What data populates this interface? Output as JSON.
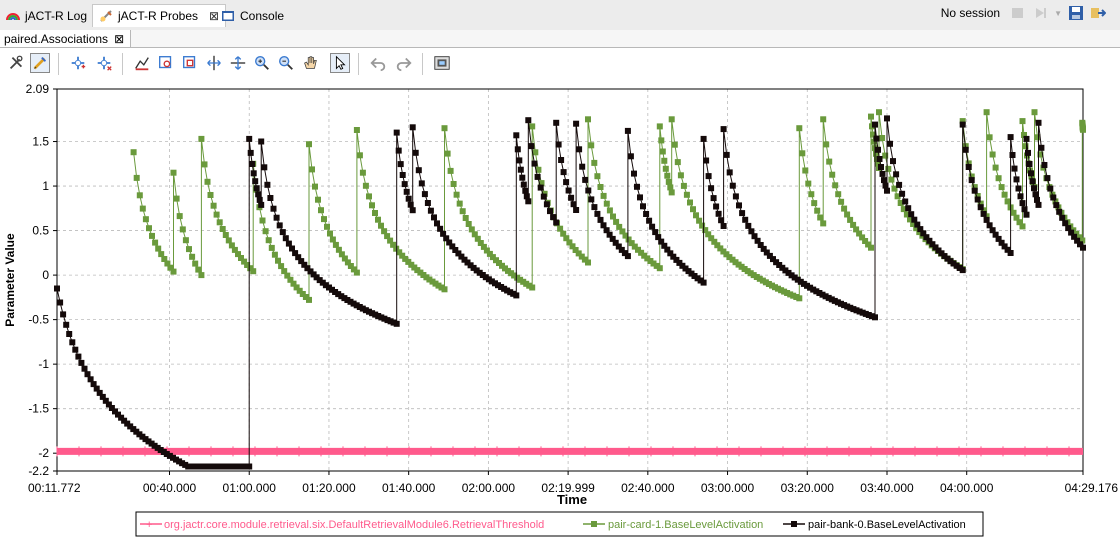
{
  "tabs": [
    {
      "label": "jACT-R Log",
      "icon": "rainbow-log-icon"
    },
    {
      "label": "jACT-R Probes",
      "icon": "probe-icon"
    },
    {
      "label": "Console",
      "icon": "console-icon"
    }
  ],
  "session": {
    "label": "No session"
  },
  "subtab": {
    "label": "paired.Associations"
  },
  "toolbar_icons": [
    "tools-icon",
    "pen-icon",
    "add-marker-icon",
    "remove-marker-icon",
    "zoom-fit-icon",
    "zoom-box-icon",
    "zoom-box-2-icon",
    "expand-horizontal-icon",
    "expand-vertical-icon",
    "zoom-in-icon",
    "zoom-out-icon",
    "pan-hand-icon",
    "pointer-icon",
    "undo-icon",
    "redo-icon",
    "snapshot-icon"
  ],
  "colors": {
    "threshold": "#ff5a8c",
    "card": "#6a9a3c",
    "bank": "#140a0a"
  },
  "chart_data": {
    "type": "line",
    "xlabel": "Time",
    "ylabel": "Parameter Value",
    "xlim": [
      11.772,
      269.176
    ],
    "ylim": [
      -2.2,
      2.09
    ],
    "x_ticks": [
      {
        "t": 11.772,
        "label": "00:11.772"
      },
      {
        "t": 40,
        "label": "00:40.000"
      },
      {
        "t": 60,
        "label": "01:00.000"
      },
      {
        "t": 80,
        "label": "01:20.000"
      },
      {
        "t": 100,
        "label": "01:40.000"
      },
      {
        "t": 120,
        "label": "02:00.000"
      },
      {
        "t": 139.999,
        "label": "02:19.999"
      },
      {
        "t": 160,
        "label": "02:40.000"
      },
      {
        "t": 180,
        "label": "03:00.000"
      },
      {
        "t": 200,
        "label": "03:20.000"
      },
      {
        "t": 220,
        "label": "03:40.000"
      },
      {
        "t": 240,
        "label": "04:00.000"
      },
      {
        "t": 269.176,
        "label": "04:29.176"
      }
    ],
    "y_ticks": [
      {
        "v": 2.09,
        "label": "2.09"
      },
      {
        "v": 1.5,
        "label": "1.5"
      },
      {
        "v": 1,
        "label": "1"
      },
      {
        "v": 0.5,
        "label": "0.5"
      },
      {
        "v": 0,
        "label": "0"
      },
      {
        "v": -0.5,
        "label": "-0.5"
      },
      {
        "v": -1,
        "label": "-1"
      },
      {
        "v": -1.5,
        "label": "-1.5"
      },
      {
        "v": -2,
        "label": "-2"
      },
      {
        "v": -2.2,
        "label": "-2.2"
      }
    ],
    "grid": true,
    "legend_position": "bottom",
    "series": [
      {
        "name": "org.jactr.core.module.retrieval.six.DefaultRetrievalModule6.RetrievalThreshold",
        "style": "threshold",
        "constant": -1.98
      },
      {
        "name": "pair-card-1.BaseLevelActivation",
        "style": "card",
        "start": 31.0,
        "end": 269.176,
        "spikes": [
          [
            31.0,
            1.38
          ],
          [
            41.0,
            1.15
          ],
          [
            48.0,
            1.53
          ],
          [
            61.0,
            1.25
          ],
          [
            75.0,
            1.47
          ],
          [
            87.0,
            1.63
          ],
          [
            109.0,
            1.65
          ],
          [
            131.0,
            1.67
          ],
          [
            145.0,
            1.75
          ],
          [
            163.0,
            1.67
          ],
          [
            166.0,
            1.75
          ],
          [
            198.0,
            1.65
          ],
          [
            204.0,
            1.75
          ],
          [
            216.0,
            1.78
          ],
          [
            218.0,
            1.83
          ],
          [
            239.0,
            1.73
          ],
          [
            245.0,
            1.83
          ],
          [
            254.0,
            1.73
          ],
          [
            257.0,
            1.83
          ],
          [
            269.0,
            1.71
          ]
        ]
      },
      {
        "name": "pair-bank-0.BaseLevelActivation",
        "style": "bank",
        "start": 11.772,
        "end": 269.176,
        "initial": -0.15,
        "spikes": [
          [
            60.0,
            1.53
          ],
          [
            63.0,
            1.5
          ],
          [
            97.0,
            1.6
          ],
          [
            101.0,
            1.66
          ],
          [
            127.0,
            1.57
          ],
          [
            130.0,
            1.74
          ],
          [
            137.0,
            1.71
          ],
          [
            142.0,
            1.7
          ],
          [
            155.0,
            1.62
          ],
          [
            174.0,
            1.53
          ],
          [
            179.0,
            1.64
          ],
          [
            217.0,
            1.69
          ],
          [
            220.0,
            1.76
          ],
          [
            239.0,
            1.69
          ],
          [
            251.0,
            1.55
          ],
          [
            255.0,
            1.53
          ],
          [
            258.0,
            1.71
          ]
        ]
      }
    ]
  }
}
